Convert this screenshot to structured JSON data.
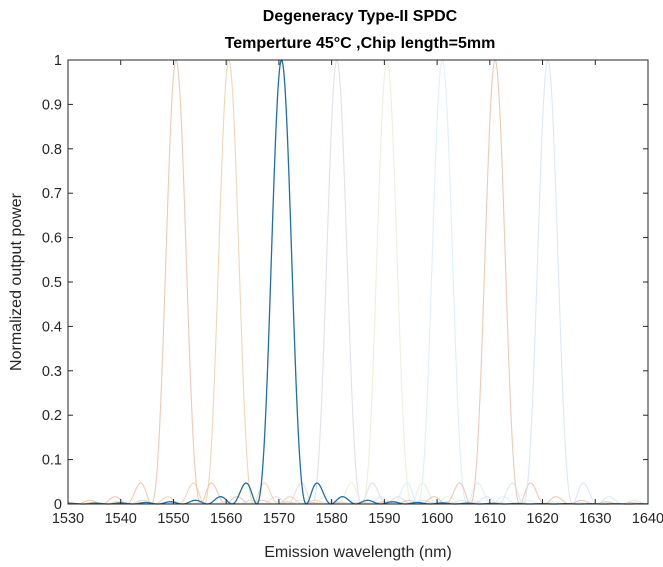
{
  "chart_data": {
    "type": "line",
    "title": "Degeneracy Type-II SPDC",
    "subtitle": "Temperture 45°C ,Chip length=5mm",
    "xlabel": "Emission wavelength (nm)",
    "ylabel": "Normalized output power",
    "xlim": [
      1530,
      1640
    ],
    "ylim": [
      0,
      1
    ],
    "xticks": [
      "1530",
      "1540",
      "1550",
      "1560",
      "1570",
      "1580",
      "1590",
      "1600",
      "1610",
      "1620",
      "1630",
      "1640"
    ],
    "yticks": [
      "0",
      "0.1",
      "0.2",
      "0.3",
      "0.4",
      "0.5",
      "0.6",
      "0.7",
      "0.8",
      "0.9",
      "1"
    ],
    "grid": false,
    "legend": "none",
    "curve_shape": "sinc^2",
    "main_lobe_half_width_nm": 4.7,
    "series": [
      {
        "center": 1550.5,
        "color": "#e8b7a0",
        "opacity": 0.75
      },
      {
        "center": 1560.5,
        "color": "#eac99f",
        "opacity": 0.75
      },
      {
        "center": 1570.5,
        "color": "#1f6fa8",
        "opacity": 1.0
      },
      {
        "center": 1581.0,
        "color": "#ddd3e6",
        "opacity": 0.75
      },
      {
        "center": 1590.5,
        "color": "#e3ecd0",
        "opacity": 0.75
      },
      {
        "center": 1601.0,
        "color": "#d3ebf5",
        "opacity": 0.75
      },
      {
        "center": 1611.0,
        "color": "#e8b7a0",
        "opacity": 0.75
      },
      {
        "center": 1621.0,
        "color": "#cfe2f0",
        "opacity": 0.75
      }
    ]
  }
}
